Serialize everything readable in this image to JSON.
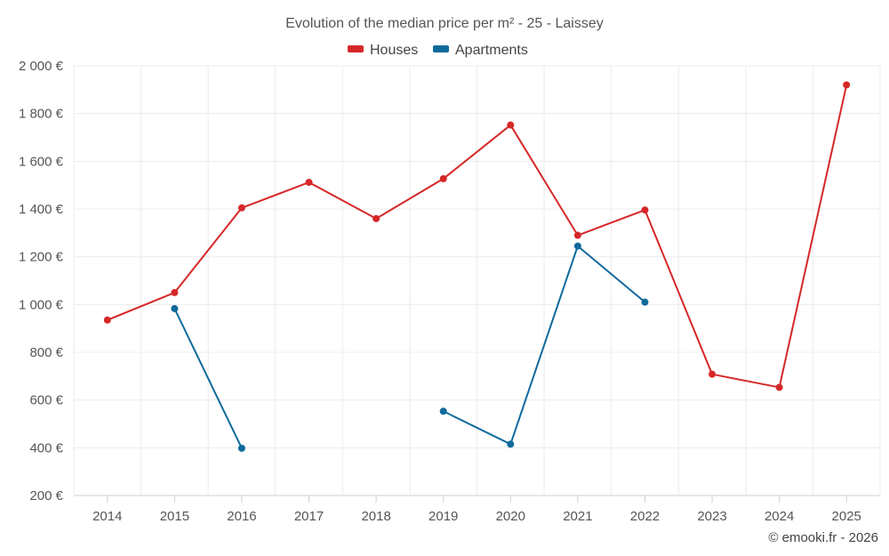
{
  "chart_data": {
    "type": "line",
    "title": "Evolution of the median price per m² - 25 - Laissey",
    "categories": [
      "2014",
      "2015",
      "2016",
      "2017",
      "2018",
      "2019",
      "2020",
      "2021",
      "2022",
      "2023",
      "2024",
      "2025"
    ],
    "ylim": [
      200,
      2000
    ],
    "yticks": [
      200,
      400,
      600,
      800,
      1000,
      1200,
      1400,
      1600,
      1800,
      2000
    ],
    "ytick_labels": [
      "200 €",
      "400 €",
      "600 €",
      "800 €",
      "1 000 €",
      "1 200 €",
      "1 400 €",
      "1 600 €",
      "1 800 €",
      "2 000 €"
    ],
    "series": [
      {
        "name": "Houses",
        "color": "#d62728",
        "values": [
          935,
          1050,
          1405,
          1512,
          1360,
          1527,
          1752,
          1290,
          1396,
          708,
          653,
          1920
        ]
      },
      {
        "name": "Apartments",
        "color": "#0f6a9c",
        "values": [
          null,
          983,
          398,
          null,
          null,
          553,
          415,
          1245,
          1010,
          null,
          null,
          null
        ]
      }
    ],
    "legend_position": "top-center",
    "grid": true
  },
  "credit": "© emooki.fr - 2026"
}
